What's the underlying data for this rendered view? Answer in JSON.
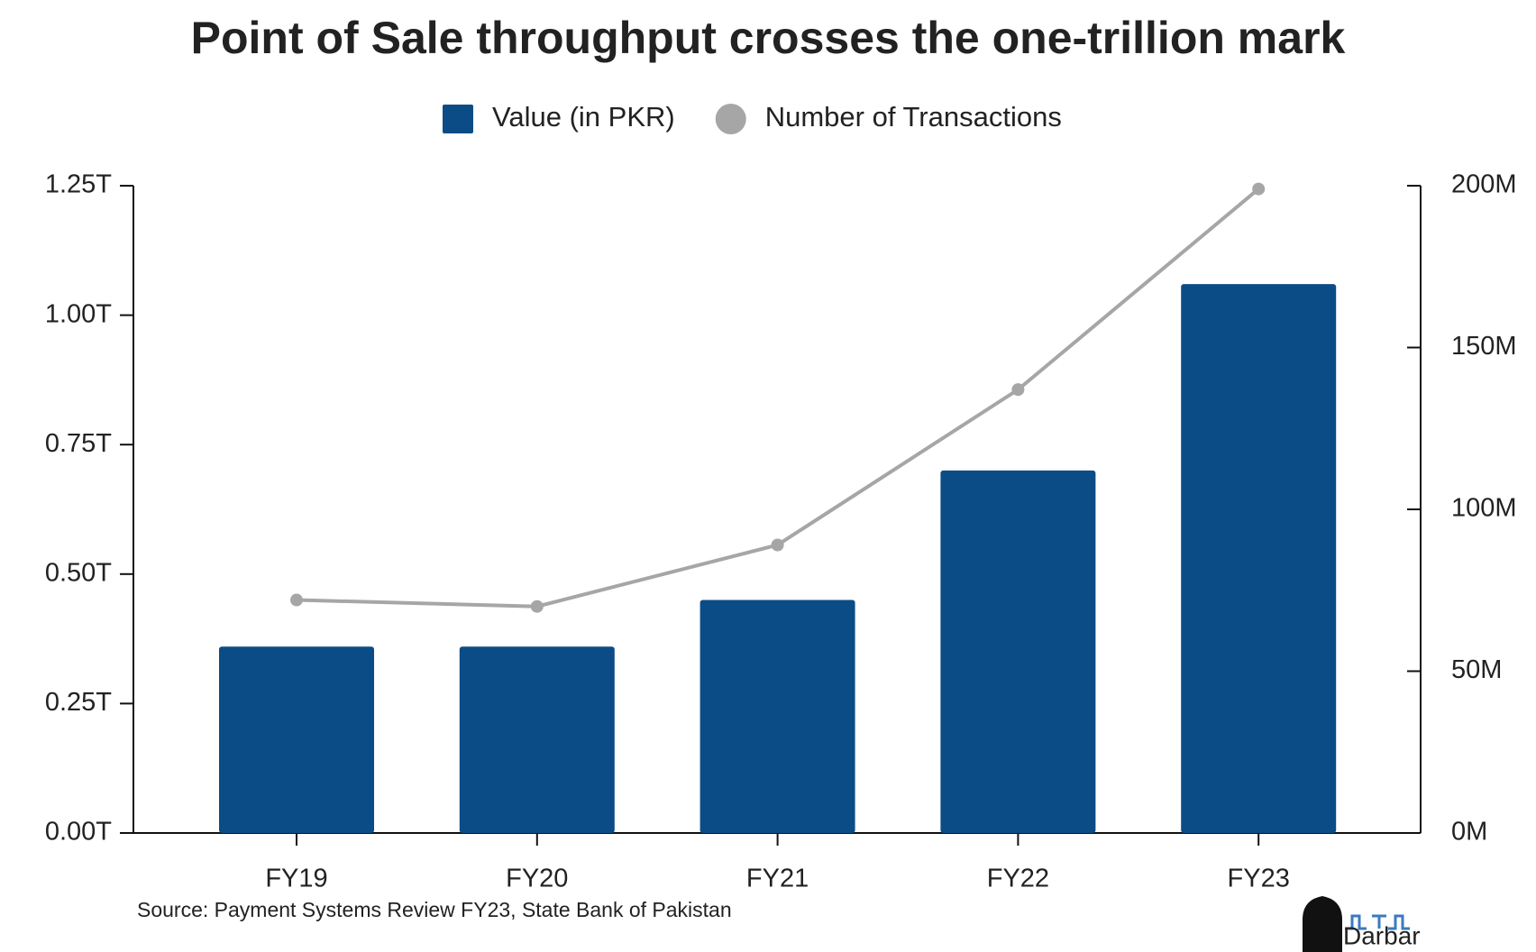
{
  "chart_data": {
    "type": "bar_line",
    "title": "Point of Sale throughput crosses the one-trillion mark",
    "categories": [
      "FY19",
      "FY20",
      "FY21",
      "FY22",
      "FY23"
    ],
    "series": [
      {
        "name": "Value (in PKR)",
        "type": "bar",
        "color": "#0b4c86",
        "values": [
          0.36,
          0.36,
          0.45,
          0.7,
          1.06
        ]
      },
      {
        "name": "Number of Transactions",
        "type": "line",
        "axis": "y2",
        "color": "#a6a6a6",
        "values": [
          72,
          70,
          89,
          137,
          199
        ]
      }
    ],
    "ylim": [
      0,
      1.25
    ],
    "yticks": [
      {
        "value": 0,
        "label": "0.00T"
      },
      {
        "value": 0.25,
        "label": "0.25T"
      },
      {
        "value": 0.5,
        "label": "0.50T"
      },
      {
        "value": 0.75,
        "label": "0.75T"
      },
      {
        "value": 1,
        "label": "1.00T"
      },
      {
        "value": 1.25,
        "label": "1.25T"
      }
    ],
    "y2lim": [
      0,
      200
    ],
    "y2ticks": [
      {
        "value": 0,
        "label": "0M"
      },
      {
        "value": 50,
        "label": "50M"
      },
      {
        "value": 100,
        "label": "100M"
      },
      {
        "value": 150,
        "label": "150M"
      },
      {
        "value": 200,
        "label": "200M"
      }
    ],
    "legend": "top",
    "source": "Source: Payment Systems Review FY23, State Bank of Pakistan",
    "logo": "Darbar"
  }
}
